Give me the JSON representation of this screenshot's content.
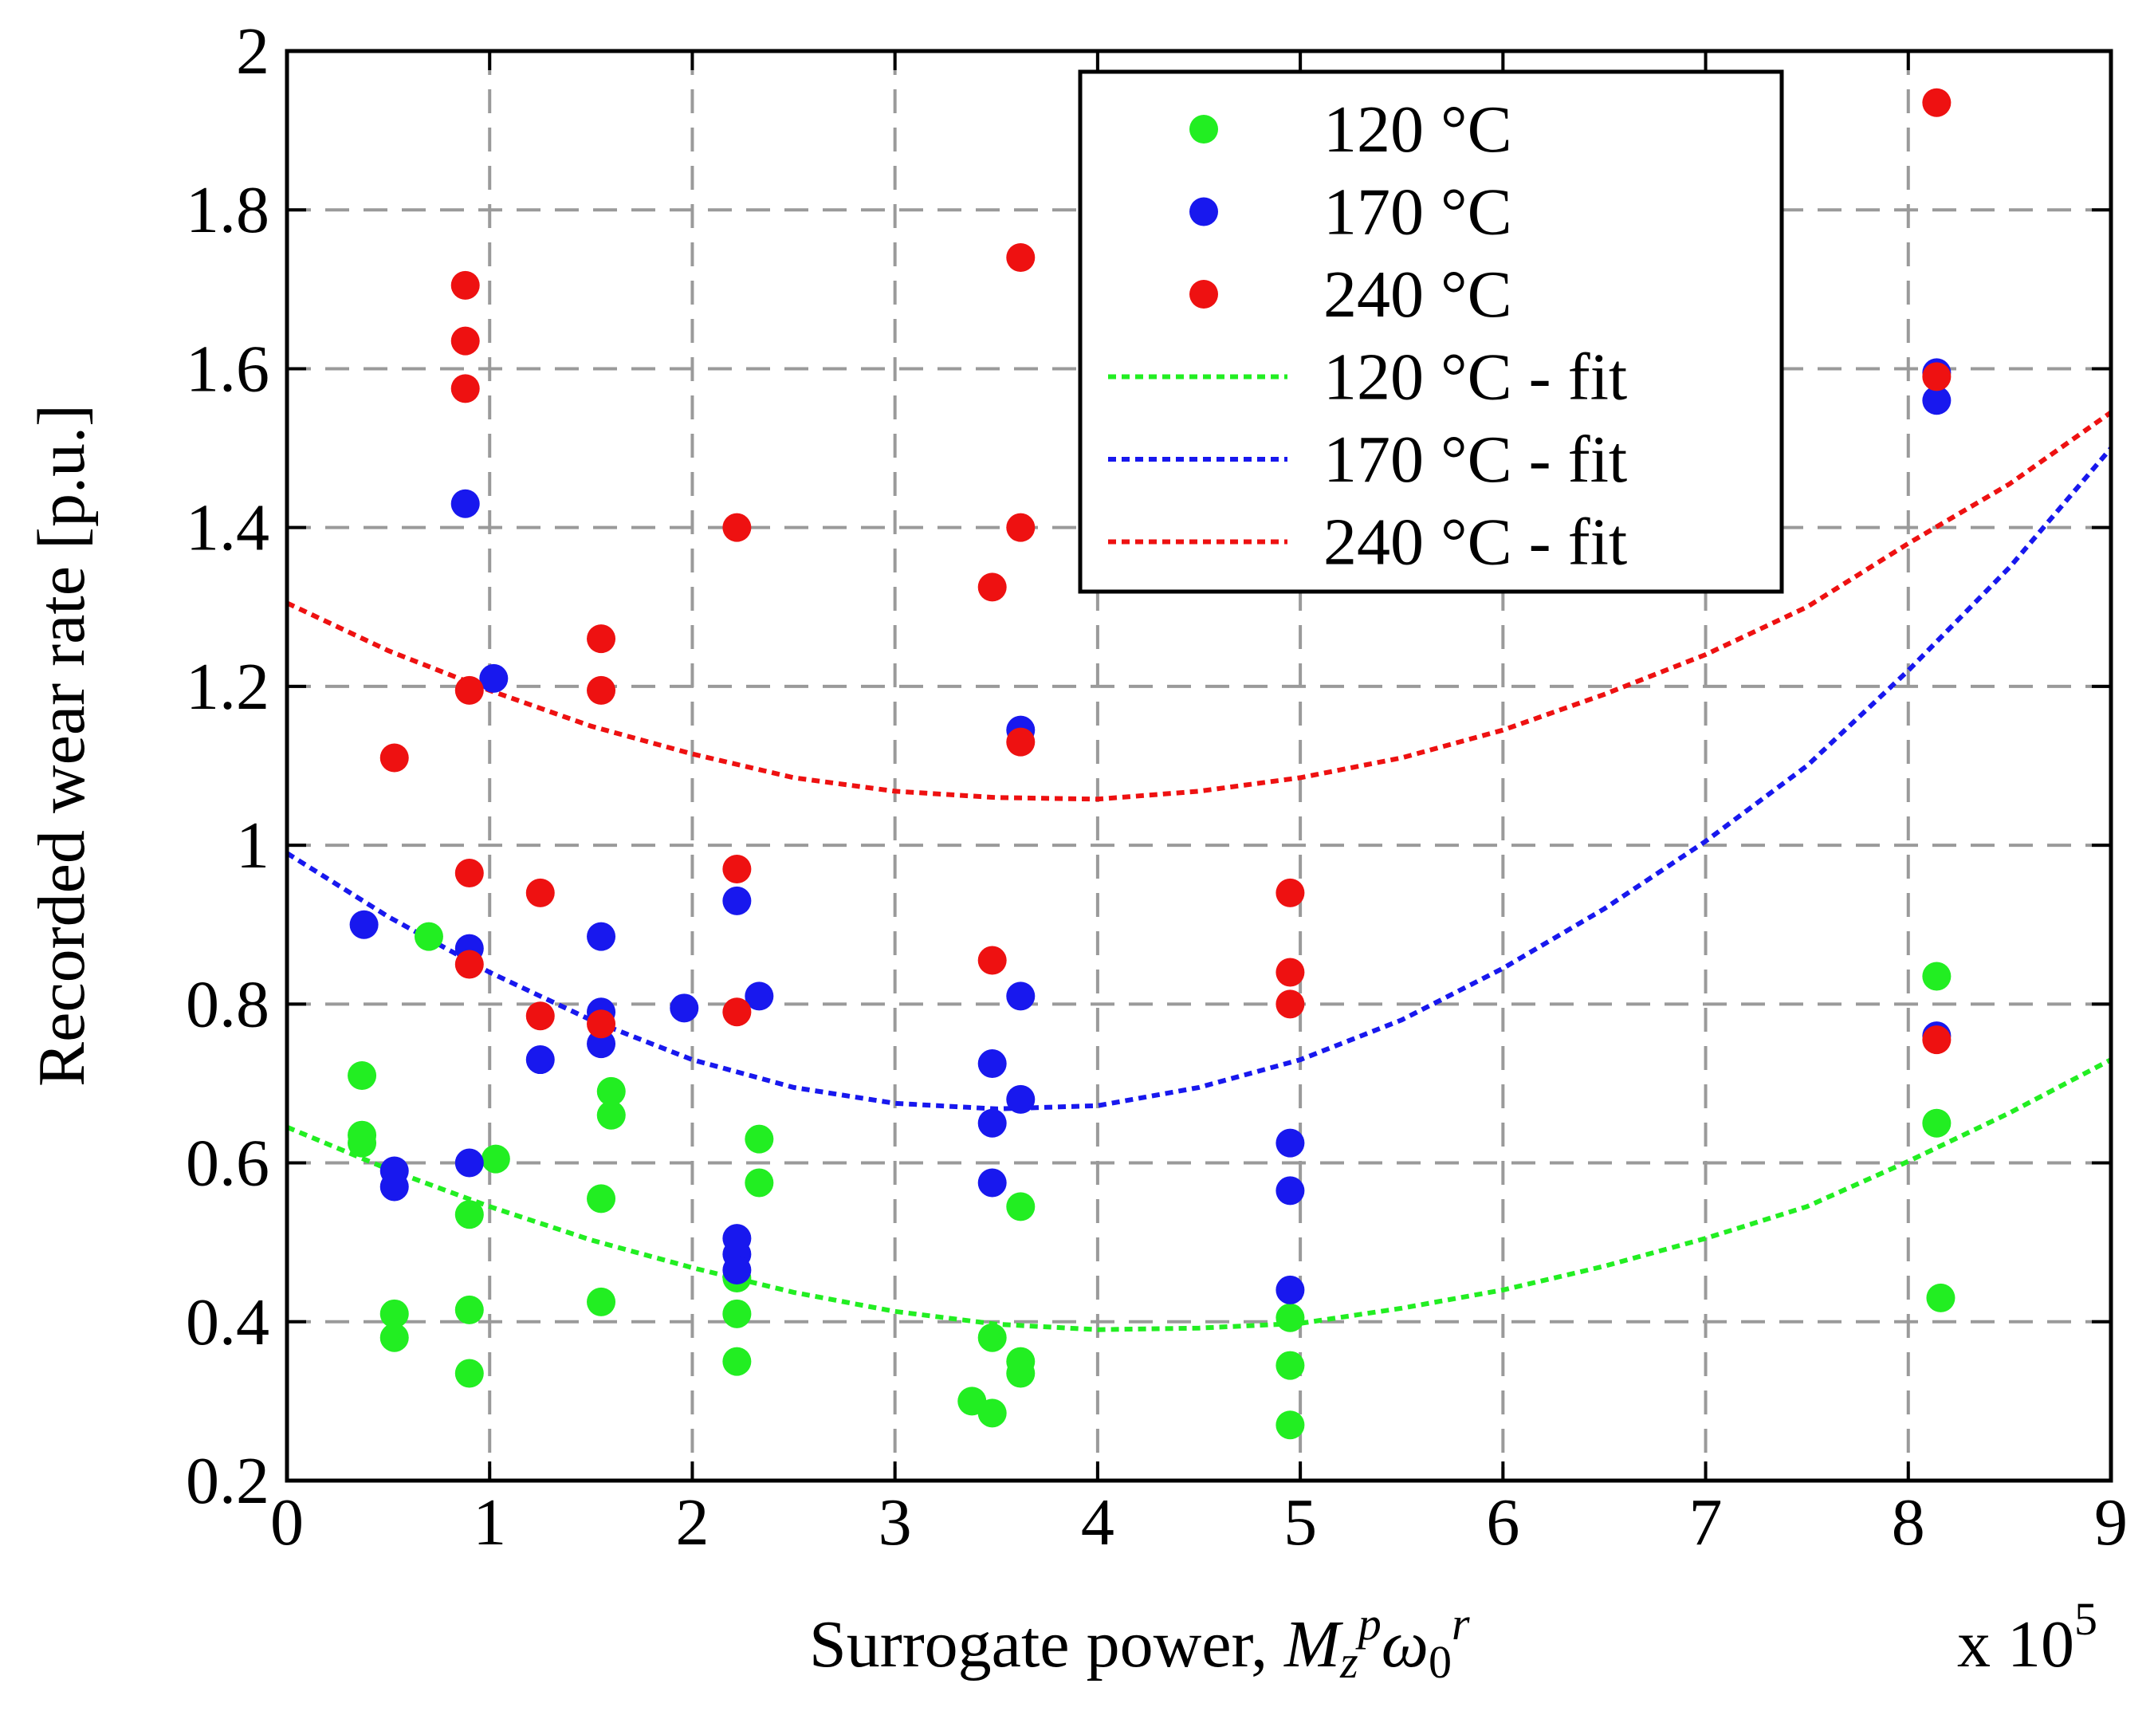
{
  "chart_data": {
    "type": "scatter",
    "xlabel_prefix": "Surrogate power, ",
    "xlabel_math": {
      "M": "M",
      "sub": "z",
      "sup1": "p",
      "omega": "ω",
      "sub0": "0",
      "sup2": "r"
    },
    "x_multiplier": "x 10",
    "x_multiplier_exp": "5",
    "ylabel": "Recorded wear rate [p.u.]",
    "xlim": [
      0,
      9
    ],
    "ylim": [
      0.2,
      2
    ],
    "grid": true,
    "legend_position": "top-right",
    "x_ticks": [
      0,
      1,
      2,
      3,
      4,
      5,
      6,
      7,
      8,
      9
    ],
    "x_tick_labels": [
      "0",
      "1",
      "2",
      "3",
      "4",
      "5",
      "6",
      "7",
      "8",
      "9"
    ],
    "y_ticks": [
      0.2,
      0.4,
      0.6,
      0.8,
      1.0,
      1.2,
      1.4,
      1.6,
      1.8,
      2.0
    ],
    "y_tick_labels": [
      "0.2",
      "0.4",
      "0.6",
      "0.8",
      "1",
      "1.2",
      "1.4",
      "1.6",
      "1.8",
      "2"
    ],
    "series": [
      {
        "name": "120 °C",
        "kind": "scatter",
        "color": "#22ee22",
        "points": [
          [
            0.37,
            0.71
          ],
          [
            0.37,
            0.635
          ],
          [
            0.37,
            0.625
          ],
          [
            0.53,
            0.41
          ],
          [
            0.53,
            0.38
          ],
          [
            0.7,
            0.885
          ],
          [
            0.9,
            0.535
          ],
          [
            0.9,
            0.415
          ],
          [
            0.9,
            0.335
          ],
          [
            1.03,
            0.605
          ],
          [
            1.55,
            0.555
          ],
          [
            1.55,
            0.425
          ],
          [
            1.6,
            0.69
          ],
          [
            1.6,
            0.66
          ],
          [
            2.22,
            0.455
          ],
          [
            2.22,
            0.41
          ],
          [
            2.22,
            0.35
          ],
          [
            2.33,
            0.63
          ],
          [
            2.33,
            0.575
          ],
          [
            3.38,
            0.3
          ],
          [
            3.48,
            0.285
          ],
          [
            3.48,
            0.38
          ],
          [
            3.62,
            0.545
          ],
          [
            3.62,
            0.35
          ],
          [
            3.62,
            0.335
          ],
          [
            4.95,
            0.405
          ],
          [
            4.95,
            0.345
          ],
          [
            4.95,
            0.27
          ],
          [
            8.14,
            0.835
          ],
          [
            8.14,
            0.65
          ],
          [
            8.16,
            0.43
          ]
        ]
      },
      {
        "name": "170 °C",
        "kind": "scatter",
        "color": "#1818ee",
        "points": [
          [
            0.38,
            0.9
          ],
          [
            0.53,
            0.59
          ],
          [
            0.53,
            0.57
          ],
          [
            0.88,
            1.43
          ],
          [
            0.9,
            0.87
          ],
          [
            0.9,
            0.6
          ],
          [
            1.02,
            1.21
          ],
          [
            1.25,
            0.73
          ],
          [
            1.55,
            0.885
          ],
          [
            1.55,
            0.79
          ],
          [
            1.55,
            0.75
          ],
          [
            1.96,
            0.795
          ],
          [
            2.22,
            0.93
          ],
          [
            2.22,
            0.505
          ],
          [
            2.22,
            0.485
          ],
          [
            2.22,
            0.465
          ],
          [
            2.33,
            0.81
          ],
          [
            3.48,
            0.725
          ],
          [
            3.48,
            0.65
          ],
          [
            3.48,
            0.575
          ],
          [
            3.62,
            1.145
          ],
          [
            3.62,
            0.81
          ],
          [
            3.62,
            0.68
          ],
          [
            4.95,
            0.625
          ],
          [
            4.95,
            0.565
          ],
          [
            4.95,
            0.44
          ],
          [
            8.14,
            1.595
          ],
          [
            8.14,
            1.56
          ],
          [
            8.14,
            0.76
          ]
        ]
      },
      {
        "name": "240 °C",
        "kind": "scatter",
        "color": "#ee1111",
        "points": [
          [
            0.53,
            1.11
          ],
          [
            0.88,
            1.705
          ],
          [
            0.88,
            1.635
          ],
          [
            0.88,
            1.575
          ],
          [
            0.9,
            1.195
          ],
          [
            0.9,
            0.965
          ],
          [
            0.9,
            0.85
          ],
          [
            1.25,
            0.94
          ],
          [
            1.25,
            0.785
          ],
          [
            1.55,
            1.26
          ],
          [
            1.55,
            1.195
          ],
          [
            1.55,
            0.775
          ],
          [
            2.22,
            1.4
          ],
          [
            2.22,
            0.97
          ],
          [
            2.22,
            0.79
          ],
          [
            3.48,
            1.325
          ],
          [
            3.48,
            0.855
          ],
          [
            3.62,
            1.74
          ],
          [
            3.62,
            1.4
          ],
          [
            3.62,
            1.13
          ],
          [
            4.95,
            0.94
          ],
          [
            4.95,
            0.84
          ],
          [
            4.95,
            0.8
          ],
          [
            8.14,
            1.935
          ],
          [
            8.14,
            1.59
          ],
          [
            8.14,
            0.755
          ]
        ]
      },
      {
        "name": "120 °C - fit",
        "kind": "line",
        "color": "#22ee22",
        "x": [
          0,
          0.5,
          1,
          1.5,
          2,
          2.5,
          3,
          3.5,
          4,
          4.5,
          5,
          5.5,
          6,
          6.5,
          7,
          7.5,
          8,
          8.5,
          9
        ],
        "y": [
          0.645,
          0.592,
          0.545,
          0.503,
          0.468,
          0.437,
          0.413,
          0.397,
          0.39,
          0.392,
          0.398,
          0.417,
          0.44,
          0.47,
          0.505,
          0.545,
          0.602,
          0.663,
          0.73
        ]
      },
      {
        "name": "170 °C - fit",
        "kind": "line",
        "color": "#1818ee",
        "x": [
          0,
          0.5,
          1,
          1.5,
          2,
          2.5,
          3,
          3.5,
          4,
          4.5,
          5,
          5.5,
          6,
          6.5,
          7,
          7.5,
          8,
          8.5,
          9
        ],
        "y": [
          0.99,
          0.91,
          0.84,
          0.78,
          0.73,
          0.695,
          0.675,
          0.668,
          0.672,
          0.695,
          0.73,
          0.78,
          0.845,
          0.92,
          1.005,
          1.1,
          1.22,
          1.35,
          1.5
        ]
      },
      {
        "name": "240 °C - fit",
        "kind": "line",
        "color": "#ee1111",
        "x": [
          0,
          0.5,
          1,
          1.5,
          2,
          2.5,
          3,
          3.5,
          4,
          4.5,
          5,
          5.5,
          6,
          6.5,
          7,
          7.5,
          8,
          8.5,
          9
        ],
        "y": [
          1.305,
          1.245,
          1.195,
          1.15,
          1.115,
          1.085,
          1.068,
          1.06,
          1.058,
          1.068,
          1.085,
          1.11,
          1.145,
          1.19,
          1.24,
          1.3,
          1.38,
          1.455,
          1.545
        ]
      }
    ]
  }
}
